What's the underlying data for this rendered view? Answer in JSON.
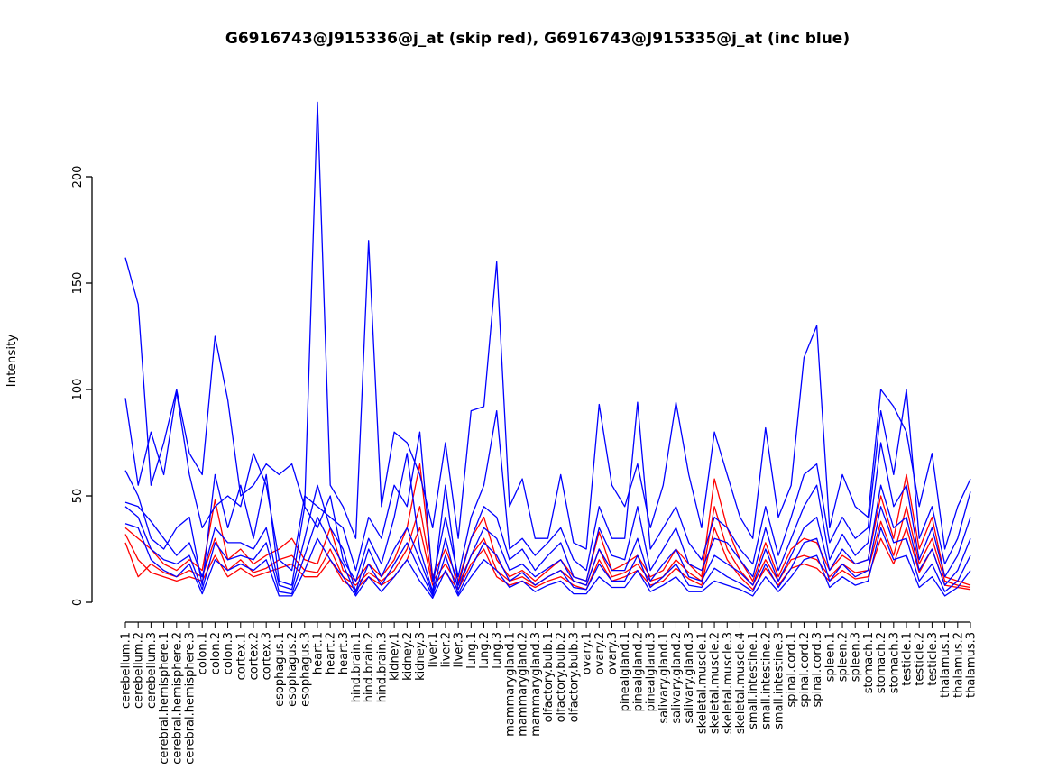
{
  "chart_data": {
    "type": "line",
    "title": "G6916743@J915336@j_at (skip red), G6916743@J915335@j_at (inc blue)",
    "ylabel": "Intensity",
    "xlabel": "",
    "yticks": [
      0,
      50,
      100,
      150,
      200
    ],
    "ylim": [
      0,
      240
    ],
    "grid": false,
    "legend": "none",
    "colors": {
      "skip_series": "#ff0000",
      "inc_series": "#0000ff",
      "axis": "#000000"
    },
    "categories": [
      "cerebellum.1",
      "cerebellum.2",
      "cerebellum.3",
      "cerebral.hemisphere.1",
      "cerebral.hemisphere.2",
      "cerebral.hemisphere.3",
      "colon.1",
      "colon.2",
      "colon.3",
      "cortex.1",
      "cortex.2",
      "cortex.3",
      "esophagus.1",
      "esophagus.2",
      "esophagus.3",
      "heart.1",
      "heart.2",
      "heart.3",
      "hind.brain.1",
      "hind.brain.2",
      "hind.brain.3",
      "kidney.1",
      "kidney.2",
      "kidney.3",
      "liver.1",
      "liver.2",
      "liver.3",
      "lung.1",
      "lung.2",
      "lung.3",
      "mammarygland.1",
      "mammarygland.2",
      "mammarygland.3",
      "olfactory.bulb.1",
      "olfactory.bulb.2",
      "olfactory.bulb.3",
      "ovary.1",
      "ovary.2",
      "ovary.3",
      "pinealgland.1",
      "pinealgland.2",
      "pinealgland.3",
      "salivary.gland.1",
      "salivary.gland.2",
      "salivary.gland.3",
      "skeletal.muscle.1",
      "skeletal.muscle.2",
      "skeletal.muscle.3",
      "skeletal.muscle.4",
      "small.intestine.1",
      "small.intestine.2",
      "small.intestine.3",
      "spinal.cord.1",
      "spinal.cord.2",
      "spinal.cord.3",
      "spleen.1",
      "spleen.2",
      "spleen.3",
      "stomach.1",
      "stomach.2",
      "stomach.3",
      "testicle.1",
      "testicle.2",
      "testicle.3",
      "thalamus.1",
      "thalamus.2",
      "thalamus.3"
    ],
    "series": [
      {
        "name": "red.1",
        "color": "#ff0000",
        "values": [
          35,
          30,
          25,
          18,
          15,
          20,
          15,
          48,
          20,
          25,
          18,
          22,
          25,
          30,
          20,
          18,
          35,
          15,
          10,
          18,
          12,
          20,
          35,
          65,
          12,
          25,
          10,
          30,
          40,
          20,
          12,
          15,
          10,
          15,
          20,
          12,
          10,
          33,
          15,
          18,
          22,
          12,
          15,
          25,
          18,
          12,
          58,
          35,
          20,
          10,
          28,
          12,
          25,
          30,
          28,
          15,
          22,
          18,
          20,
          50,
          30,
          60,
          25,
          40,
          12,
          10,
          8
        ]
      },
      {
        "name": "red.2",
        "color": "#ff0000",
        "values": [
          28,
          12,
          18,
          14,
          12,
          15,
          12,
          30,
          15,
          20,
          14,
          16,
          20,
          22,
          15,
          14,
          25,
          12,
          8,
          14,
          10,
          15,
          25,
          45,
          10,
          18,
          8,
          22,
          30,
          15,
          10,
          12,
          8,
          12,
          15,
          10,
          8,
          25,
          12,
          14,
          18,
          10,
          12,
          20,
          14,
          10,
          45,
          25,
          15,
          8,
          20,
          10,
          20,
          22,
          20,
          12,
          18,
          14,
          15,
          38,
          22,
          45,
          18,
          30,
          10,
          8,
          7
        ]
      },
      {
        "name": "red.3",
        "color": "#ff0000",
        "values": [
          32,
          20,
          14,
          12,
          10,
          12,
          10,
          22,
          12,
          16,
          12,
          14,
          16,
          18,
          12,
          12,
          20,
          10,
          6,
          12,
          8,
          12,
          20,
          35,
          8,
          14,
          6,
          18,
          25,
          12,
          8,
          10,
          7,
          10,
          12,
          8,
          6,
          20,
          10,
          12,
          15,
          8,
          10,
          16,
          11,
          8,
          35,
          20,
          12,
          6,
          16,
          8,
          16,
          18,
          16,
          10,
          15,
          11,
          12,
          30,
          18,
          35,
          14,
          25,
          8,
          7,
          6
        ]
      },
      {
        "name": "blue.1",
        "color": "#0000ff",
        "values": [
          162,
          140,
          55,
          75,
          100,
          70,
          60,
          125,
          95,
          50,
          55,
          65,
          60,
          65,
          45,
          235,
          55,
          45,
          30,
          170,
          45,
          80,
          75,
          60,
          35,
          75,
          30,
          90,
          92,
          160,
          45,
          58,
          30,
          30,
          60,
          28,
          25,
          93,
          55,
          45,
          65,
          35,
          55,
          94,
          60,
          35,
          80,
          60,
          40,
          30,
          82,
          40,
          55,
          115,
          130,
          35,
          60,
          45,
          40,
          100,
          92,
          80,
          45,
          70,
          25,
          45,
          58
        ]
      },
      {
        "name": "blue.2",
        "color": "#0000ff",
        "values": [
          96,
          55,
          80,
          60,
          99,
          60,
          35,
          45,
          50,
          45,
          70,
          55,
          20,
          15,
          50,
          45,
          40,
          35,
          15,
          40,
          30,
          55,
          45,
          80,
          10,
          40,
          12,
          40,
          55,
          90,
          25,
          30,
          22,
          28,
          35,
          20,
          15,
          45,
          30,
          30,
          94,
          25,
          35,
          45,
          28,
          20,
          40,
          35,
          25,
          18,
          45,
          22,
          40,
          60,
          65,
          28,
          40,
          30,
          35,
          90,
          60,
          100,
          30,
          45,
          18,
          30,
          52
        ]
      },
      {
        "name": "blue.3",
        "color": "#0000ff",
        "values": [
          62,
          50,
          30,
          25,
          35,
          40,
          8,
          60,
          35,
          55,
          30,
          60,
          10,
          8,
          45,
          35,
          50,
          20,
          10,
          30,
          18,
          40,
          70,
          25,
          5,
          55,
          8,
          30,
          45,
          40,
          20,
          25,
          15,
          22,
          28,
          12,
          10,
          35,
          22,
          20,
          45,
          15,
          25,
          35,
          18,
          15,
          30,
          28,
          20,
          12,
          35,
          15,
          30,
          45,
          55,
          20,
          32,
          22,
          28,
          75,
          45,
          55,
          20,
          35,
          12,
          22,
          40
        ]
      },
      {
        "name": "blue.4",
        "color": "#0000ff",
        "values": [
          47,
          45,
          38,
          30,
          22,
          28,
          12,
          35,
          28,
          28,
          25,
          35,
          8,
          6,
          30,
          55,
          35,
          25,
          5,
          25,
          12,
          25,
          35,
          20,
          4,
          30,
          6,
          22,
          35,
          30,
          15,
          18,
          12,
          16,
          20,
          10,
          8,
          25,
          15,
          15,
          30,
          10,
          18,
          25,
          12,
          10,
          22,
          18,
          14,
          8,
          25,
          10,
          22,
          35,
          40,
          15,
          25,
          18,
          20,
          55,
          35,
          40,
          15,
          25,
          8,
          15,
          30
        ]
      },
      {
        "name": "blue.5",
        "color": "#0000ff",
        "values": [
          45,
          40,
          25,
          20,
          18,
          22,
          6,
          28,
          20,
          22,
          20,
          28,
          5,
          4,
          22,
          40,
          28,
          18,
          4,
          18,
          8,
          18,
          28,
          15,
          3,
          22,
          4,
          16,
          28,
          22,
          10,
          14,
          8,
          12,
          15,
          7,
          6,
          18,
          10,
          10,
          22,
          7,
          12,
          18,
          8,
          7,
          16,
          12,
          9,
          5,
          18,
          7,
          16,
          28,
          30,
          10,
          18,
          12,
          15,
          45,
          28,
          30,
          10,
          18,
          5,
          10,
          22
        ]
      },
      {
        "name": "blue.6",
        "color": "#0000ff",
        "values": [
          37,
          35,
          20,
          15,
          12,
          18,
          4,
          20,
          15,
          18,
          15,
          20,
          3,
          3,
          15,
          30,
          20,
          12,
          3,
          12,
          5,
          12,
          20,
          10,
          2,
          15,
          3,
          12,
          20,
          15,
          7,
          10,
          5,
          8,
          10,
          4,
          4,
          12,
          7,
          7,
          15,
          5,
          8,
          12,
          5,
          5,
          10,
          8,
          6,
          3,
          12,
          5,
          12,
          20,
          22,
          7,
          12,
          8,
          10,
          35,
          20,
          22,
          7,
          12,
          3,
          7,
          15
        ]
      }
    ]
  }
}
